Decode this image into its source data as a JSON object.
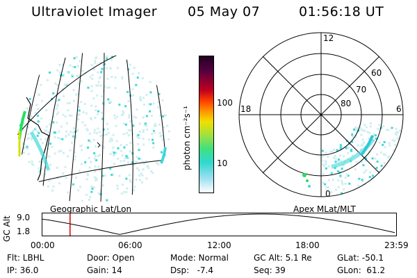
{
  "header": {
    "instrument": "Ultraviolet Imager",
    "date": "05 May 07",
    "time": "01:56:18 UT"
  },
  "left_panel": {
    "caption": "Geographic Lat/Lon"
  },
  "right_panel": {
    "caption": "Apex MLat/MLT",
    "mlt_labels": {
      "top": "12",
      "left": "18",
      "right": "6",
      "bottom": "0"
    },
    "mlat_labels": [
      "60",
      "70",
      "80"
    ]
  },
  "colorbar": {
    "unit_label": "photon cm⁻²s⁻¹",
    "tick_labels": [
      "100",
      "10"
    ]
  },
  "timeline": {
    "ylabel": "GC Alt",
    "yticks": [
      "9.0",
      "1.8"
    ],
    "xticks": [
      "00:00",
      "06:00",
      "12:00",
      "18:00",
      "23:59"
    ],
    "marker_time_fraction": 0.08
  },
  "status": {
    "flt": "Flt: LBHL",
    "door": "Door: Open",
    "mode": "Mode: Normal",
    "gc_alt": "GC Alt: 5.1 Re",
    "glat": "GLat: -50.1",
    "ip": "IP: 36.0",
    "gain": "Gain: 14",
    "dsp": "Dsp:   -7.4",
    "seq": "Seq: 39",
    "glon": "GLon:  61.2"
  },
  "colors": {
    "aurora_faint": "#cfeef0",
    "aurora_mid": "#40d8d8",
    "aurora_green": "#22e060",
    "marker": "#cc0000"
  }
}
